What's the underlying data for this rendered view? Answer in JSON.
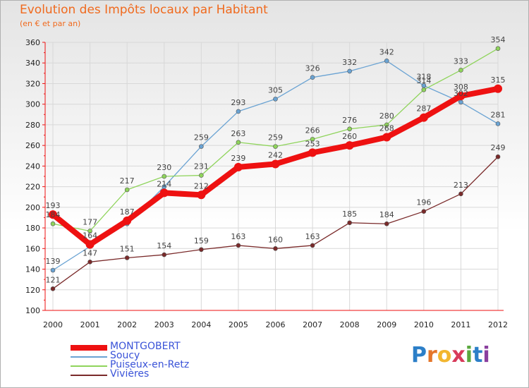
{
  "title": "Evolution des Impôts locaux par Habitant",
  "subtitle": "(en € et par an)",
  "logo": {
    "letters": [
      "P",
      "r",
      "o",
      "x",
      "i",
      "t",
      "i"
    ],
    "colors": [
      "#2c7fc8",
      "#e5762a",
      "#f2b630",
      "#d83a5a",
      "#5aa83e",
      "#2c7fc8",
      "#8a3f9e"
    ]
  },
  "chart_data": {
    "type": "line",
    "title": "Evolution des Impôts locaux par Habitant",
    "subtitle": "(en € et par an)",
    "xlabel": "",
    "ylabel": "",
    "x": [
      "2000",
      "2001",
      "2002",
      "2003",
      "2004",
      "2005",
      "2006",
      "2007",
      "2008",
      "2009",
      "2010",
      "2011",
      "2012"
    ],
    "ylim": [
      100,
      360
    ],
    "yticks": [
      "100",
      "120",
      "140",
      "160",
      "180",
      "200",
      "220",
      "240",
      "260",
      "280",
      "300",
      "320",
      "340",
      "360"
    ],
    "grid": true,
    "legend_position": "bottom-left",
    "series": [
      {
        "name": "MONTGOBERT",
        "color": "#ee1111",
        "emphasis": true,
        "values": [
          193,
          164,
          187,
          214,
          212,
          239,
          242,
          253,
          260,
          268,
          287,
          308,
          315
        ],
        "labels": [
          "193",
          "164",
          "187",
          "214",
          "212",
          "239",
          "242",
          "253",
          "260",
          "268",
          "287",
          "308",
          "315"
        ]
      },
      {
        "name": "Soucy",
        "color": "#6aa3d3",
        "emphasis": false,
        "values": [
          139,
          162,
          184,
          220,
          259,
          293,
          305,
          326,
          332,
          342,
          318,
          302,
          281
        ],
        "labels": [
          "139",
          "",
          "",
          "",
          "259",
          "293",
          "305",
          "326",
          "332",
          "342",
          "318",
          "302",
          "281"
        ]
      },
      {
        "name": "Puiseux-en-Retz",
        "color": "#8fd45b",
        "emphasis": false,
        "values": [
          184,
          177,
          217,
          230,
          231,
          263,
          259,
          266,
          276,
          280,
          314,
          333,
          354
        ],
        "labels": [
          "184",
          "177",
          "217",
          "230",
          "231",
          "263",
          "259",
          "266",
          "276",
          "280",
          "314",
          "333",
          "354"
        ]
      },
      {
        "name": "Vivières",
        "color": "#7a2a2a",
        "emphasis": false,
        "values": [
          121,
          147,
          151,
          154,
          159,
          163,
          160,
          163,
          185,
          184,
          196,
          213,
          249
        ],
        "labels": [
          "121",
          "147",
          "151",
          "154",
          "159",
          "163",
          "160",
          "163",
          "185",
          "184",
          "196",
          "213",
          "249"
        ]
      }
    ]
  }
}
